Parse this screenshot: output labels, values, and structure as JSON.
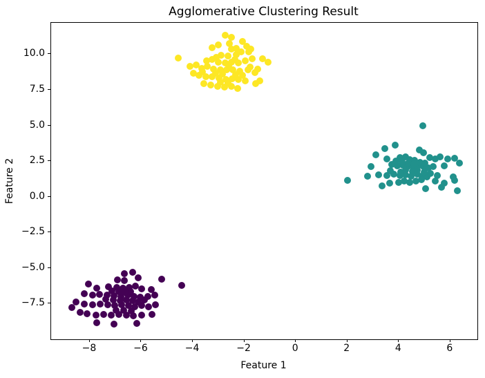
{
  "figure": {
    "title": "Agglomerative Clustering Result",
    "xlabel": "Feature 1",
    "ylabel": "Feature 2"
  },
  "chart_data": {
    "type": "scatter",
    "title": "Agglomerative Clustering Result",
    "xlabel": "Feature 1",
    "ylabel": "Feature 2",
    "xlim": [
      -9.5,
      7.05
    ],
    "ylim": [
      -10.0,
      12.2
    ],
    "x_ticks": [
      -8,
      -6,
      -4,
      -2,
      0,
      2,
      4,
      6
    ],
    "x_tick_labels": [
      "−8",
      "−6",
      "−4",
      "−2",
      "0",
      "2",
      "4",
      "6"
    ],
    "y_ticks": [
      10.0,
      7.5,
      5.0,
      2.5,
      0.0,
      -2.5,
      -5.0,
      -7.5
    ],
    "y_tick_labels": [
      "10.0",
      "7.5",
      "5.0",
      "2.5",
      "0.0",
      "−2.5",
      "−5.0",
      "−7.5"
    ],
    "grid": false,
    "legend_position": "none",
    "marker_size_px": 10,
    "series": [
      {
        "name": "cluster-0-purple",
        "color": "#440154",
        "points": [
          [
            -6.62,
            -5.43
          ],
          [
            -6.31,
            -5.33
          ],
          [
            -6.89,
            -5.87
          ],
          [
            -6.64,
            -5.95
          ],
          [
            -6.09,
            -5.75
          ],
          [
            -5.19,
            -5.82
          ],
          [
            -8.03,
            -6.19
          ],
          [
            -7.71,
            -6.46
          ],
          [
            -7.25,
            -6.35
          ],
          [
            -6.93,
            -6.4
          ],
          [
            -6.69,
            -6.46
          ],
          [
            -6.43,
            -6.4
          ],
          [
            -6.19,
            -6.3
          ],
          [
            -5.95,
            -6.51
          ],
          [
            -5.59,
            -6.56
          ],
          [
            -4.4,
            -6.27
          ],
          [
            -8.19,
            -6.83
          ],
          [
            -7.87,
            -6.95
          ],
          [
            -7.59,
            -6.88
          ],
          [
            -7.29,
            -6.95
          ],
          [
            -7.02,
            -7.0
          ],
          [
            -6.76,
            -7.04
          ],
          [
            -6.49,
            -6.95
          ],
          [
            -6.25,
            -7.04
          ],
          [
            -6.0,
            -7.11
          ],
          [
            -5.71,
            -7.04
          ],
          [
            -5.46,
            -6.95
          ],
          [
            -8.5,
            -7.43
          ],
          [
            -8.68,
            -7.8
          ],
          [
            -8.19,
            -7.56
          ],
          [
            -7.87,
            -7.64
          ],
          [
            -7.56,
            -7.56
          ],
          [
            -7.27,
            -7.64
          ],
          [
            -7.0,
            -7.69
          ],
          [
            -6.73,
            -7.64
          ],
          [
            -6.46,
            -7.69
          ],
          [
            -6.22,
            -7.76
          ],
          [
            -5.95,
            -7.69
          ],
          [
            -5.68,
            -7.76
          ],
          [
            -5.42,
            -7.64
          ],
          [
            -8.36,
            -8.18
          ],
          [
            -8.07,
            -8.24
          ],
          [
            -7.74,
            -8.34
          ],
          [
            -7.43,
            -8.29
          ],
          [
            -7.14,
            -8.34
          ],
          [
            -6.84,
            -8.29
          ],
          [
            -6.55,
            -8.34
          ],
          [
            -6.27,
            -8.4
          ],
          [
            -5.95,
            -8.34
          ],
          [
            -5.55,
            -8.29
          ],
          [
            -7.71,
            -8.89
          ],
          [
            -7.02,
            -9.0
          ],
          [
            -6.16,
            -8.94
          ],
          [
            -6.4,
            -6.7
          ],
          [
            -6.6,
            -6.75
          ],
          [
            -6.85,
            -6.7
          ],
          [
            -7.1,
            -6.65
          ],
          [
            -6.3,
            -7.35
          ],
          [
            -6.55,
            -7.3
          ],
          [
            -6.8,
            -7.35
          ],
          [
            -7.05,
            -7.3
          ],
          [
            -7.35,
            -7.25
          ],
          [
            -6.1,
            -7.45
          ],
          [
            -5.85,
            -7.3
          ],
          [
            -6.65,
            -8.0
          ],
          [
            -6.95,
            -8.02
          ],
          [
            -6.35,
            -8.05
          ]
        ]
      },
      {
        "name": "cluster-1-teal",
        "color": "#21918c",
        "points": [
          [
            4.95,
            4.93
          ],
          [
            3.88,
            3.59
          ],
          [
            3.48,
            3.31
          ],
          [
            3.14,
            2.89
          ],
          [
            4.82,
            3.21
          ],
          [
            4.98,
            3.02
          ],
          [
            3.55,
            2.62
          ],
          [
            4.06,
            2.7
          ],
          [
            4.28,
            2.73
          ],
          [
            4.46,
            2.57
          ],
          [
            4.64,
            2.51
          ],
          [
            5.22,
            2.7
          ],
          [
            5.44,
            2.62
          ],
          [
            5.62,
            2.73
          ],
          [
            5.93,
            2.62
          ],
          [
            6.2,
            2.67
          ],
          [
            2.94,
            2.05
          ],
          [
            3.76,
            2.21
          ],
          [
            3.97,
            2.13
          ],
          [
            4.17,
            2.18
          ],
          [
            4.37,
            2.08
          ],
          [
            4.57,
            2.05
          ],
          [
            4.77,
            2.13
          ],
          [
            4.98,
            2.05
          ],
          [
            5.17,
            1.97
          ],
          [
            5.37,
            2.08
          ],
          [
            5.8,
            2.13
          ],
          [
            2.81,
            1.41
          ],
          [
            3.25,
            1.49
          ],
          [
            3.57,
            1.44
          ],
          [
            3.83,
            1.54
          ],
          [
            4.06,
            1.44
          ],
          [
            4.28,
            1.49
          ],
          [
            4.5,
            1.41
          ],
          [
            4.73,
            1.54
          ],
          [
            4.92,
            1.41
          ],
          [
            5.13,
            1.32
          ],
          [
            5.53,
            1.44
          ],
          [
            6.14,
            1.32
          ],
          [
            2.03,
            1.1
          ],
          [
            3.37,
            0.73
          ],
          [
            3.67,
            0.89
          ],
          [
            4.01,
            0.95
          ],
          [
            4.24,
            1.05
          ],
          [
            4.46,
            0.95
          ],
          [
            4.68,
            1.05
          ],
          [
            5.07,
            0.5
          ],
          [
            5.69,
            0.63
          ],
          [
            5.8,
            0.89
          ],
          [
            6.2,
            1.11
          ],
          [
            6.3,
            0.35
          ],
          [
            3.9,
            2.45
          ],
          [
            4.15,
            2.4
          ],
          [
            4.4,
            2.3
          ],
          [
            4.6,
            2.25
          ],
          [
            4.85,
            2.35
          ],
          [
            5.05,
            2.3
          ],
          [
            4.3,
            1.85
          ],
          [
            4.55,
            1.75
          ],
          [
            4.75,
            1.85
          ],
          [
            5.0,
            1.7
          ],
          [
            5.25,
            1.6
          ],
          [
            4.1,
            1.7
          ],
          [
            3.7,
            1.8
          ],
          [
            4.9,
            1.15
          ],
          [
            5.45,
            1.05
          ],
          [
            6.38,
            2.3
          ]
        ]
      },
      {
        "name": "cluster-2-yellow",
        "color": "#fde725",
        "points": [
          [
            -4.55,
            9.68
          ],
          [
            -2.71,
            11.3
          ],
          [
            -2.47,
            11.12
          ],
          [
            -2.04,
            10.85
          ],
          [
            -3.22,
            10.42
          ],
          [
            -2.98,
            10.6
          ],
          [
            -2.48,
            10.32
          ],
          [
            -2.29,
            10.37
          ],
          [
            -1.87,
            10.5
          ],
          [
            -1.8,
            10.12
          ],
          [
            -2.87,
            9.89
          ],
          [
            -2.6,
            9.81
          ],
          [
            -2.29,
            9.92
          ],
          [
            -3.45,
            9.48
          ],
          [
            -3.23,
            9.56
          ],
          [
            -2.98,
            9.4
          ],
          [
            -2.71,
            9.36
          ],
          [
            -2.47,
            9.4
          ],
          [
            -2.2,
            9.32
          ],
          [
            -1.93,
            9.48
          ],
          [
            -1.66,
            9.65
          ],
          [
            -1.26,
            9.61
          ],
          [
            -1.04,
            9.4
          ],
          [
            -4.08,
            9.08
          ],
          [
            -3.85,
            9.19
          ],
          [
            -3.63,
            8.97
          ],
          [
            -3.4,
            9.08
          ],
          [
            -3.18,
            8.92
          ],
          [
            -2.91,
            8.84
          ],
          [
            -2.66,
            8.87
          ],
          [
            -2.42,
            8.84
          ],
          [
            -2.15,
            8.76
          ],
          [
            -1.84,
            8.84
          ],
          [
            -1.57,
            8.68
          ],
          [
            -1.37,
            8.1
          ],
          [
            -3.94,
            8.6
          ],
          [
            -3.72,
            8.48
          ],
          [
            -3.47,
            8.39
          ],
          [
            -3.23,
            8.35
          ],
          [
            -2.96,
            8.27
          ],
          [
            -2.69,
            8.19
          ],
          [
            -2.45,
            8.23
          ],
          [
            -2.2,
            8.16
          ],
          [
            -1.93,
            8.06
          ],
          [
            -3.54,
            7.9
          ],
          [
            -3.27,
            7.79
          ],
          [
            -3.0,
            7.71
          ],
          [
            -2.73,
            7.63
          ],
          [
            -2.48,
            7.67
          ],
          [
            -2.22,
            7.55
          ],
          [
            -1.53,
            7.9
          ],
          [
            -2.55,
            10.7
          ],
          [
            -2.1,
            10.1
          ],
          [
            -3.05,
            9.75
          ],
          [
            -2.35,
            9.6
          ],
          [
            -1.75,
            9.05
          ],
          [
            -2.58,
            9.15
          ],
          [
            -3.6,
            8.72
          ],
          [
            -2.05,
            8.45
          ],
          [
            -2.82,
            8.55
          ],
          [
            -3.1,
            8.62
          ],
          [
            -1.45,
            8.9
          ],
          [
            -2.3,
            8.5
          ],
          [
            -2.6,
            7.95
          ],
          [
            -2.9,
            7.98
          ],
          [
            -1.71,
            10.31
          ]
        ]
      }
    ]
  }
}
